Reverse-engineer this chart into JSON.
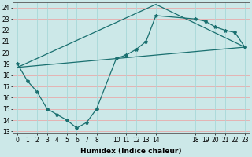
{
  "bg_color": "#cce8e8",
  "plot_bg_color": "#cce8e8",
  "line_color": "#1a7070",
  "grid_h_color": "#e8aaaa",
  "grid_v_color": "#a8d8d8",
  "xlabel": "Humidex (Indice chaleur)",
  "ylim": [
    12.8,
    24.5
  ],
  "xlim": [
    -0.5,
    23.5
  ],
  "yticks": [
    13,
    14,
    15,
    16,
    17,
    18,
    19,
    20,
    21,
    22,
    23,
    24
  ],
  "xticks": [
    0,
    1,
    2,
    3,
    4,
    5,
    6,
    7,
    8,
    10,
    11,
    12,
    13,
    14,
    18,
    19,
    20,
    21,
    22,
    23
  ],
  "line1_x": [
    0,
    1,
    2,
    3,
    4,
    5,
    6,
    7,
    8,
    10,
    11,
    12,
    13,
    14,
    18,
    19,
    20,
    21,
    22,
    23
  ],
  "line1_y": [
    19.0,
    17.5,
    16.5,
    15.0,
    14.5,
    14.0,
    13.3,
    13.8,
    15.0,
    19.5,
    19.8,
    20.3,
    21.0,
    23.3,
    23.0,
    22.8,
    22.3,
    22.0,
    21.8,
    20.5
  ],
  "line2_x": [
    0,
    23
  ],
  "line2_y": [
    18.7,
    20.5
  ],
  "line3_x": [
    0,
    14,
    23
  ],
  "line3_y": [
    18.7,
    24.3,
    20.5
  ],
  "markersize": 3,
  "linewidth": 0.9,
  "tick_fontsize": 5.5,
  "xlabel_fontsize": 6.5
}
